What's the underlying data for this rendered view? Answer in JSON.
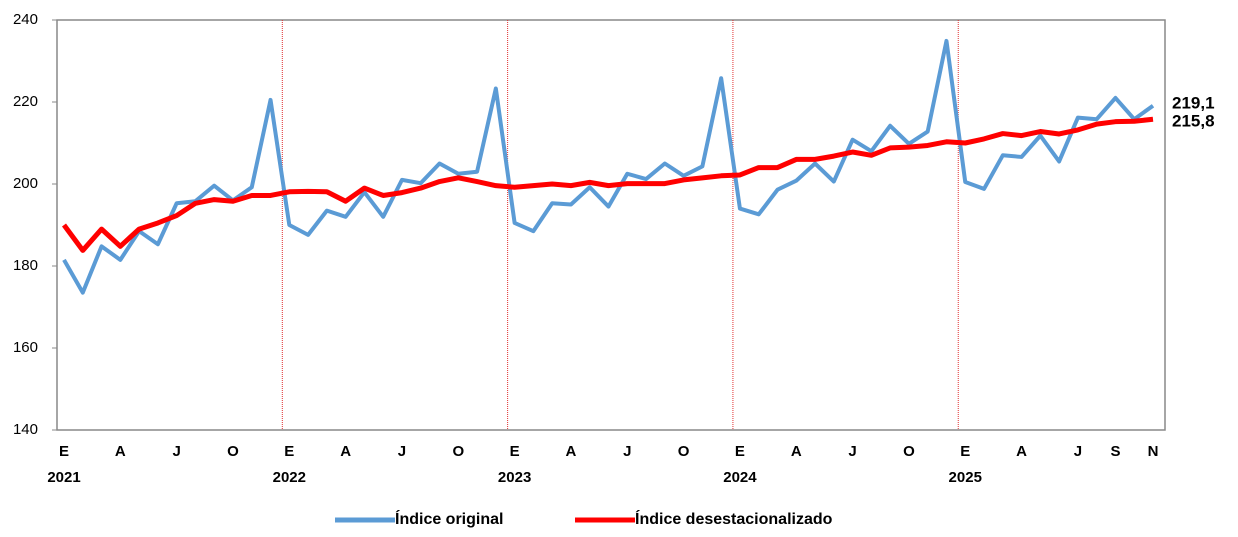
{
  "chart_data": {
    "type": "line",
    "categories": [
      "E",
      null,
      null,
      "A",
      null,
      null,
      "J",
      null,
      null,
      "O",
      null,
      null,
      "E",
      null,
      null,
      "A",
      null,
      null,
      "J",
      null,
      null,
      "O",
      null,
      null,
      "E",
      null,
      null,
      "A",
      null,
      null,
      "J",
      null,
      null,
      "O",
      null,
      null,
      "E",
      null,
      null,
      "A",
      null,
      null,
      "J",
      null,
      null,
      "O",
      null,
      null,
      "E",
      null,
      null,
      "A",
      null,
      null,
      "J",
      null,
      "S",
      null,
      "N"
    ],
    "category_years": [
      "2021",
      null,
      null,
      null,
      null,
      null,
      null,
      null,
      null,
      null,
      null,
      null,
      "2022",
      null,
      null,
      null,
      null,
      null,
      null,
      null,
      null,
      null,
      null,
      null,
      "2023",
      null,
      null,
      null,
      null,
      null,
      null,
      null,
      null,
      null,
      null,
      null,
      "2024",
      null,
      null,
      null,
      null,
      null,
      null,
      null,
      null,
      null,
      null,
      null,
      "2025",
      null,
      null,
      null,
      null,
      null,
      null,
      null,
      null,
      null,
      null
    ],
    "series": [
      {
        "name": "Índice original",
        "color": "#5b9bd5",
        "label_color": "#1f3864",
        "end_label": "219,1",
        "values": [
          181.5,
          173.5,
          184.8,
          181.5,
          188.5,
          185.3,
          195.3,
          195.8,
          199.6,
          196,
          199.2,
          220.5,
          190,
          187.6,
          193.5,
          192,
          198,
          192,
          201,
          200.2,
          205,
          202.5,
          203,
          223.3,
          190.5,
          188.5,
          195.3,
          195,
          199.2,
          194.5,
          202.5,
          201.2,
          205,
          202,
          204.3,
          225.8,
          194,
          192.6,
          198.6,
          200.8,
          205,
          200.6,
          210.8,
          208,
          214.2,
          209.8,
          212.8,
          234.9,
          200.5,
          198.8,
          207,
          206.6,
          211.8,
          205.5,
          216.2,
          215.8,
          221,
          215.8,
          219.1
        ]
      },
      {
        "name": "Índice desestacionalizado",
        "color": "#ff0000",
        "label_color": "#c00000",
        "end_label": "215,8",
        "values": [
          190,
          183.8,
          189,
          184.8,
          189,
          190.5,
          192.3,
          195.3,
          196.2,
          195.8,
          197.2,
          197.2,
          198.1,
          198.2,
          198.1,
          195.8,
          199,
          197.2,
          197.9,
          199,
          200.6,
          201.5,
          200.6,
          199.6,
          199.2,
          199.6,
          200,
          199.6,
          200.4,
          199.6,
          200.1,
          200.1,
          200.1,
          201,
          201.5,
          202,
          202.2,
          204,
          204,
          206,
          206,
          206.8,
          207.8,
          207,
          208.8,
          209,
          209.4,
          210.3,
          210,
          211,
          212.3,
          211.8,
          212.8,
          212.2,
          213.2,
          214.6,
          215.2,
          215.3,
          215.8
        ]
      }
    ],
    "ylim": [
      140,
      240
    ],
    "yticks": [
      140,
      160,
      180,
      200,
      220,
      240
    ],
    "year_separators": true
  }
}
